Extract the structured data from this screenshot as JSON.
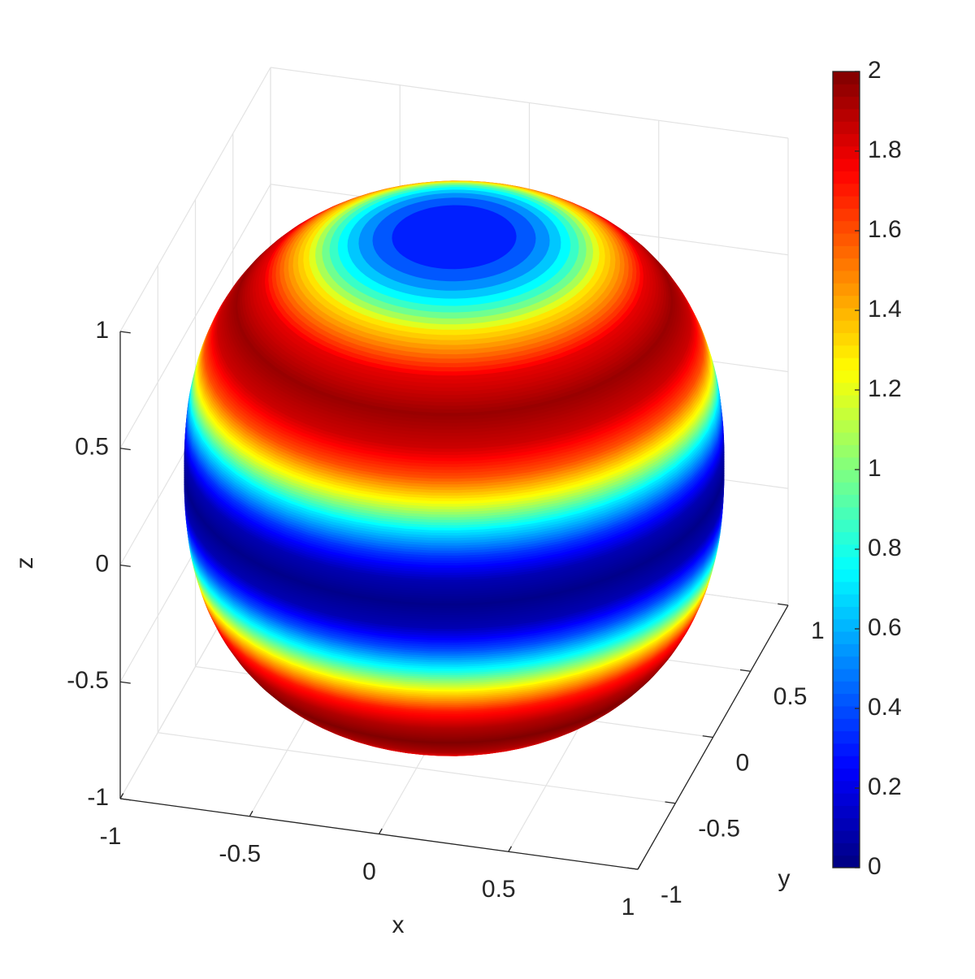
{
  "chart_data": {
    "type": "surface3d",
    "xlabel": "x",
    "ylabel": "y",
    "zlabel": "z",
    "xlim": [
      -1,
      1
    ],
    "ylim": [
      -1,
      1
    ],
    "zlim": [
      -1,
      1
    ],
    "xticks": [
      -1,
      -0.5,
      0,
      0.5,
      1
    ],
    "yticks": [
      -1,
      -0.5,
      0,
      0.5,
      1
    ],
    "zticks": [
      -1,
      -0.5,
      0,
      0.5,
      1
    ],
    "grid": true,
    "colormap": "jet",
    "clim": [
      0,
      2
    ],
    "cticks": [
      0,
      0.2,
      0.4,
      0.6,
      0.8,
      1,
      1.2,
      1.4,
      1.6,
      1.8,
      2
    ],
    "surface": {
      "z": [
        -1,
        -0.9,
        -0.8,
        -0.7,
        -0.6,
        -0.5,
        -0.4,
        -0.3,
        -0.2,
        -0.1,
        0,
        0.1,
        0.2,
        0.3,
        0.4,
        0.5,
        0.6,
        0.7,
        0.8,
        0.9,
        1
      ],
      "values": [
        1.2,
        1.7,
        1.9,
        2,
        1.9,
        1.7,
        1.3,
        0.8,
        0.4,
        0.1,
        0.02,
        0.1,
        0.35,
        0.7,
        1.2,
        1.6,
        1.85,
        1.95,
        1.8,
        1.3,
        0.2
      ]
    }
  }
}
